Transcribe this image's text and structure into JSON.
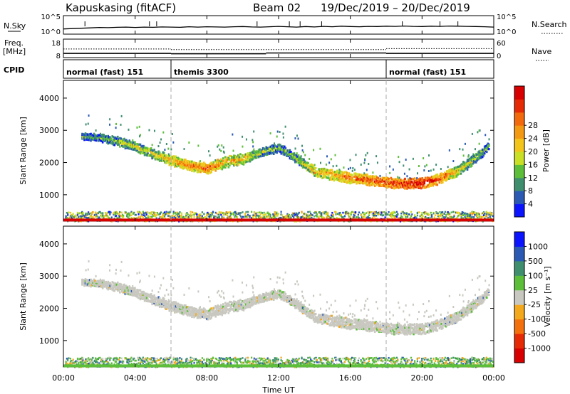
{
  "header": {
    "station": "Kapuskasing (fitACF)",
    "beam": "Beam 02",
    "date_range": "19/Dec/2019 – 20/Dec/2019"
  },
  "chart_data": [
    {
      "id": "nsky",
      "type": "line",
      "ylabel": "N.Sky",
      "y_ticks_left": [
        "10^5",
        "10^0"
      ],
      "y_ticks_right": [
        "10^5",
        "10^0"
      ],
      "right_label": "N.Search",
      "x_hours": [
        0,
        0.5,
        1,
        1.5,
        2,
        2.5,
        3,
        3.5,
        4,
        4.5,
        5,
        5.5,
        6,
        6.5,
        7,
        7.5,
        8,
        8.5,
        9,
        9.5,
        10,
        10.5,
        11,
        11.5,
        12,
        12.5,
        13,
        13.5,
        14,
        14.5,
        15,
        15.5,
        16,
        16.5,
        17,
        17.5,
        18,
        18.5,
        19,
        19.5,
        20,
        20.5,
        21,
        21.5,
        22,
        22.5,
        23,
        23.5,
        24
      ],
      "values_frac": [
        0.28,
        0.3,
        0.32,
        0.34,
        0.36,
        0.35,
        0.37,
        0.38,
        0.36,
        0.38,
        0.37,
        0.39,
        0.38,
        0.37,
        0.4,
        0.38,
        0.4,
        0.39,
        0.38,
        0.4,
        0.41,
        0.39,
        0.38,
        0.4,
        0.42,
        0.4,
        0.38,
        0.41,
        0.39,
        0.42,
        0.4,
        0.43,
        0.41,
        0.4,
        0.42,
        0.41,
        0.43,
        0.42,
        0.44,
        0.42,
        0.41,
        0.43,
        0.42,
        0.44,
        0.43,
        0.42,
        0.41,
        0.4,
        0.38
      ]
    },
    {
      "id": "freq",
      "type": "line",
      "ylabel": "Freq.",
      "yunit": "[MHz]",
      "y_ticks_left": [
        "18",
        "8"
      ],
      "y_ticks_right": [
        "60",
        "0"
      ],
      "right_label": "Nave",
      "freq_segments": [
        {
          "from": 0,
          "to": 6,
          "value": 10.3
        },
        {
          "from": 6,
          "to": 11.3,
          "value": 10.1
        },
        {
          "from": 11.3,
          "to": 18,
          "value": 10.5
        },
        {
          "from": 18,
          "to": 24,
          "value": 10.3
        }
      ],
      "nave_segments": [
        {
          "from": 0,
          "to": 6,
          "value": 28
        },
        {
          "from": 6,
          "to": 18,
          "value": 26
        },
        {
          "from": 18,
          "to": 24,
          "value": 29
        }
      ]
    },
    {
      "id": "cpid",
      "type": "table",
      "label": "CPID",
      "programs": [
        {
          "start": 0,
          "end": 6,
          "name": "normal (fast) 151"
        },
        {
          "start": 6,
          "end": 18,
          "name": "themis 3300"
        },
        {
          "start": 18,
          "end": 24,
          "name": "normal (fast) 151"
        }
      ]
    },
    {
      "id": "power",
      "type": "heatmap",
      "ylabel": "Slant Range [km]",
      "ylim": [
        180,
        4550
      ],
      "y_ticks": [
        1000,
        2000,
        3000,
        4000
      ],
      "colorbar_label": "Power [dB]",
      "colorbar_ticks": [
        "4",
        "8",
        "12",
        "16",
        "20",
        "24",
        "28"
      ],
      "colorbar_colors": [
        "#0a14ff",
        "#2a5ab4",
        "#3f8f6f",
        "#5dbe3a",
        "#c9e024",
        "#f3c51b",
        "#f39a12",
        "#f36a0c",
        "#e52a05",
        "#d80000"
      ],
      "echo_band": [
        {
          "h": 1.0,
          "r": 2850,
          "w": 180,
          "v": 8
        },
        {
          "h": 2.0,
          "r": 2800,
          "w": 200,
          "v": 8
        },
        {
          "h": 3.0,
          "r": 2700,
          "w": 250,
          "v": 10
        },
        {
          "h": 4.0,
          "r": 2520,
          "w": 250,
          "v": 11
        },
        {
          "h": 5.0,
          "r": 2300,
          "w": 280,
          "v": 13
        },
        {
          "h": 6.0,
          "r": 2100,
          "w": 300,
          "v": 15
        },
        {
          "h": 7.0,
          "r": 1950,
          "w": 300,
          "v": 18
        },
        {
          "h": 8.0,
          "r": 1850,
          "w": 300,
          "v": 20
        },
        {
          "h": 9.0,
          "r": 2050,
          "w": 320,
          "v": 16
        },
        {
          "h": 10.0,
          "r": 2150,
          "w": 300,
          "v": 15
        },
        {
          "h": 11.0,
          "r": 2350,
          "w": 250,
          "v": 10
        },
        {
          "h": 12.0,
          "r": 2500,
          "w": 250,
          "v": 8
        },
        {
          "h": 13.0,
          "r": 2150,
          "w": 250,
          "v": 10
        },
        {
          "h": 14.0,
          "r": 1750,
          "w": 280,
          "v": 15
        },
        {
          "h": 15.0,
          "r": 1650,
          "w": 300,
          "v": 17
        },
        {
          "h": 16.0,
          "r": 1550,
          "w": 300,
          "v": 19
        },
        {
          "h": 17.0,
          "r": 1500,
          "w": 300,
          "v": 21
        },
        {
          "h": 18.0,
          "r": 1420,
          "w": 300,
          "v": 22
        },
        {
          "h": 19.0,
          "r": 1380,
          "w": 300,
          "v": 24
        },
        {
          "h": 20.0,
          "r": 1400,
          "w": 300,
          "v": 24
        },
        {
          "h": 21.0,
          "r": 1550,
          "w": 300,
          "v": 20
        },
        {
          "h": 22.0,
          "r": 1800,
          "w": 300,
          "v": 14
        },
        {
          "h": 23.0,
          "r": 2200,
          "w": 280,
          "v": 10
        },
        {
          "h": 23.7,
          "r": 2550,
          "w": 250,
          "v": 8
        }
      ],
      "ground_band_value": 10
    },
    {
      "id": "velocity",
      "type": "heatmap",
      "ylabel": "Slant Range [km]",
      "ylim": [
        180,
        4550
      ],
      "y_ticks": [
        1000,
        2000,
        3000,
        4000
      ],
      "xlabel": "Time UT",
      "x_ticks": [
        "00:00",
        "04:00",
        "08:00",
        "12:00",
        "16:00",
        "20:00",
        "00:00"
      ],
      "colorbar_label": "Velocity [m s⁻¹]",
      "colorbar_ticks": [
        "1000",
        "500",
        "100",
        "25",
        "-25",
        "-100",
        "-500",
        "-1000"
      ],
      "colorbar_colors": [
        "#0a14ff",
        "#2a5ab4",
        "#3f8f6f",
        "#5dbe3a",
        "#c8c8c0",
        "#f3a91b",
        "#f3700c",
        "#e52a05",
        "#d80000"
      ],
      "ground_scatter_color": "#c8c8c0"
    }
  ]
}
